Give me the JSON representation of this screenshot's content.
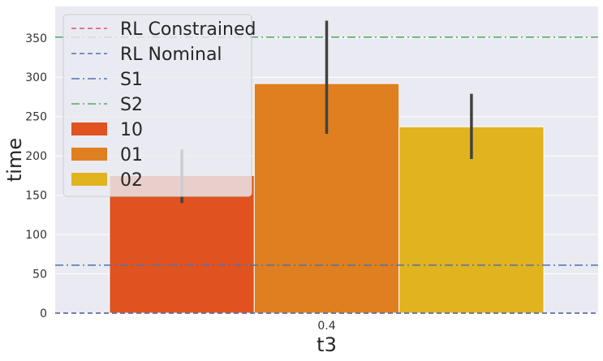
{
  "chart_data": {
    "type": "bar",
    "title": "",
    "xlabel": "t3",
    "ylabel": "time",
    "categories": [
      "0.4"
    ],
    "ylim": [
      0,
      390
    ],
    "yticks": [
      0,
      50,
      100,
      150,
      200,
      250,
      300,
      350
    ],
    "grid": true,
    "legend_position": "top-left",
    "series": [
      {
        "name": "10",
        "color": "#e0521f",
        "values": [
          175
        ],
        "error": [
          [
            140,
            208
          ]
        ]
      },
      {
        "name": "01",
        "color": "#e07f1f",
        "values": [
          292
        ],
        "error": [
          [
            228,
            372
          ]
        ]
      },
      {
        "name": "02",
        "color": "#e0b31f",
        "values": [
          237
        ],
        "error": [
          [
            196,
            279
          ]
        ]
      }
    ],
    "reference_lines": [
      {
        "name": "RL Constrained",
        "y": 0,
        "color": "#d9536f",
        "style": "dashed"
      },
      {
        "name": "RL Nominal",
        "y": 0,
        "color": "#4c72b0",
        "style": "dashed"
      },
      {
        "name": "S1",
        "y": 61,
        "color": "#4c72b0",
        "style": "dashdot"
      },
      {
        "name": "S2",
        "y": 351,
        "color": "#55a868",
        "style": "dashdot"
      }
    ],
    "colors": {
      "plot_background": "#eaeaf2",
      "grid": "#ffffff",
      "error_bar": "#424242"
    }
  }
}
